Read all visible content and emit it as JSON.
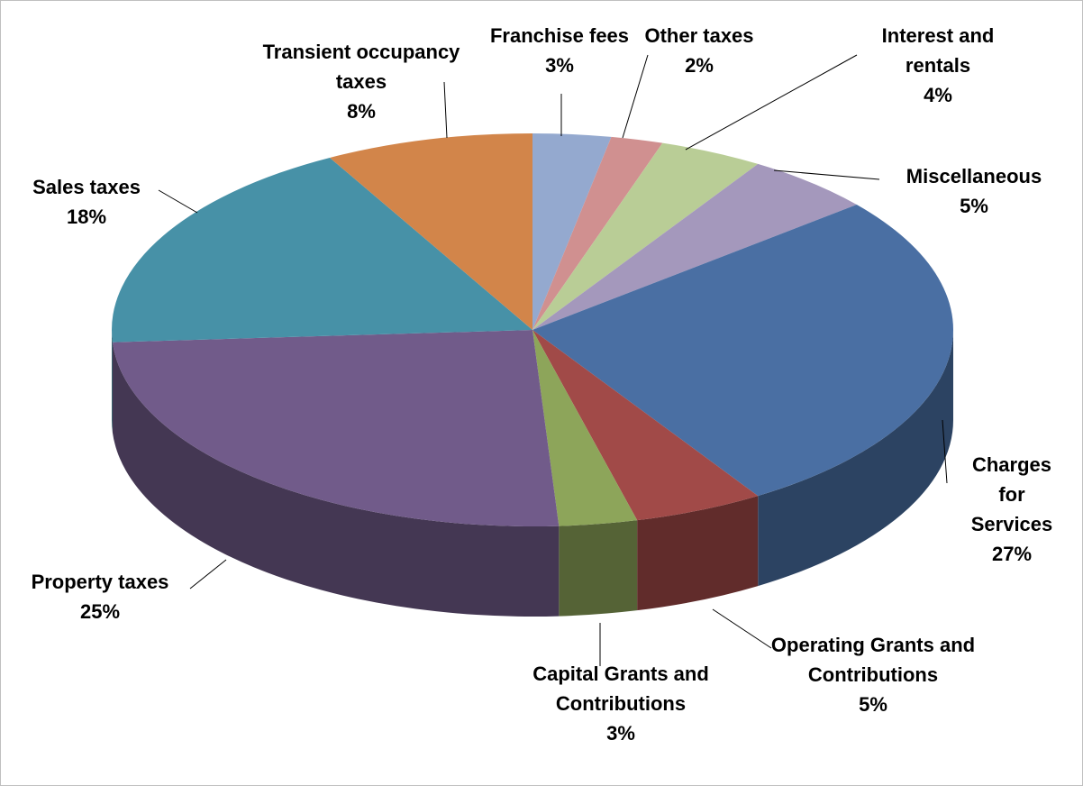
{
  "chart_data": {
    "type": "pie3d",
    "categories": [
      "Franchise fees",
      "Other taxes",
      "Interest and rentals",
      "Miscellaneous",
      "Charges for Services",
      "Operating Grants and Contributions",
      "Capital Grants and Contributions",
      "Property taxes",
      "Sales taxes",
      "Transient occupancy taxes"
    ],
    "values": [
      3,
      2,
      4,
      5,
      27,
      5,
      3,
      25,
      18,
      8
    ],
    "value_labels": [
      "3%",
      "2%",
      "4%",
      "5%",
      "27%",
      "5%",
      "3%",
      "25%",
      "18%",
      "8%"
    ],
    "colors": [
      "#94a9cf",
      "#d09090",
      "#b9cd96",
      "#a498bc",
      "#4a6fa3",
      "#a14a48",
      "#8da55a",
      "#715b8a",
      "#4791a7",
      "#d2854a"
    ]
  }
}
